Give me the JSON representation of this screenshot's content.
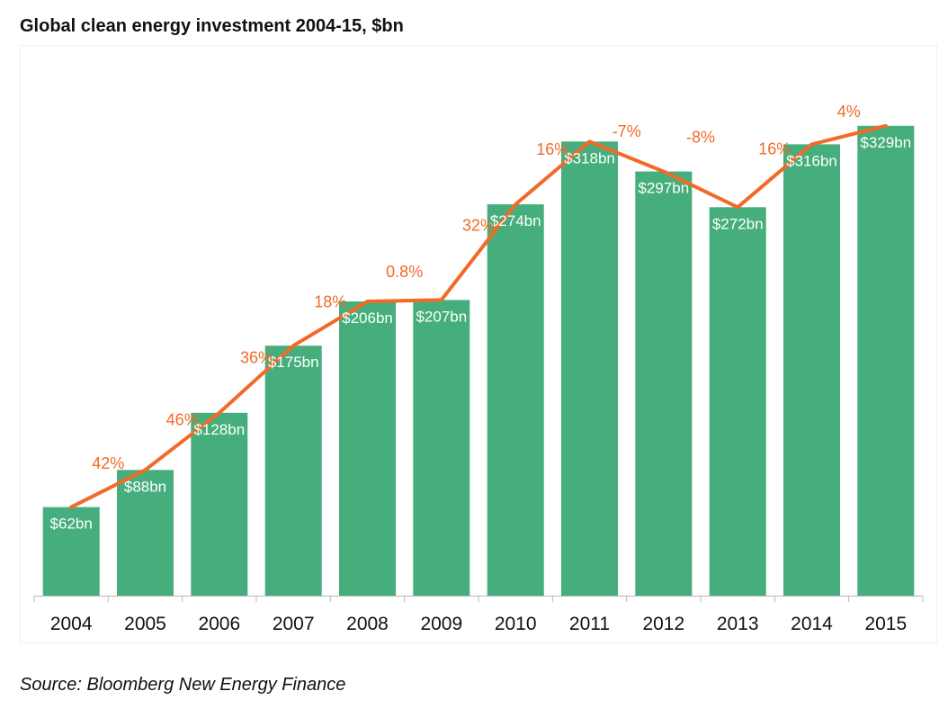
{
  "chart_data": {
    "type": "bar",
    "title": "Global clean energy investment 2004-15, $bn",
    "categories": [
      "2004",
      "2005",
      "2006",
      "2007",
      "2008",
      "2009",
      "2010",
      "2011",
      "2012",
      "2013",
      "2014",
      "2015"
    ],
    "values": [
      62,
      88,
      128,
      175,
      206,
      207,
      274,
      318,
      297,
      272,
      316,
      329
    ],
    "value_labels": [
      "$62bn",
      "$88bn",
      "$128bn",
      "$175bn",
      "$206bn",
      "$207bn",
      "$274bn",
      "$318bn",
      "$297bn",
      "$272bn",
      "$316bn",
      "$329bn"
    ],
    "growth_labels": [
      "42%",
      "46%",
      "36%",
      "18%",
      "0.8%",
      "32%",
      "16%",
      "-7%",
      "-8%",
      "16%",
      "4%"
    ],
    "growth_label_years": [
      "2005",
      "2006",
      "2007",
      "2008",
      "2009",
      "2010",
      "2011",
      "2012",
      "2013",
      "2014",
      "2015"
    ],
    "xlabel": "",
    "ylabel": "",
    "ylim": [
      0,
      400
    ],
    "grid": false,
    "bar_color": "#45ae7c",
    "line_color": "#f26a27",
    "axis_color": "#b7b7b7"
  },
  "source": "Source: Bloomberg New Energy Finance"
}
